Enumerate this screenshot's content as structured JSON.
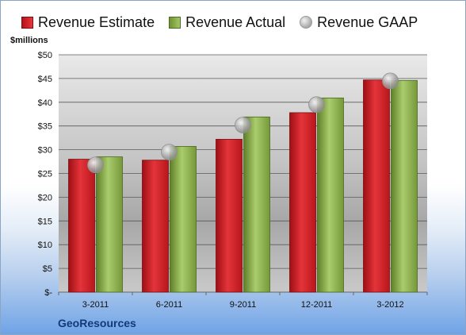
{
  "company": "GeoResources",
  "colors": {
    "estimate": "#d4242a",
    "actual": "#8db04f",
    "gaap": "#b5b5b5"
  },
  "chart_data": {
    "type": "bar",
    "title": "",
    "xlabel": "",
    "ylabel": "$millions",
    "categories": [
      "3-2011",
      "6-2011",
      "9-2011",
      "12-2011",
      "3-2012"
    ],
    "series": [
      {
        "name": "Revenue Estimate",
        "values": [
          28.0,
          27.8,
          32.2,
          37.8,
          44.7
        ]
      },
      {
        "name": "Revenue Actual",
        "values": [
          28.5,
          30.7,
          36.9,
          40.9,
          44.6
        ]
      },
      {
        "name": "Revenue GAAP",
        "values": [
          26.8,
          29.5,
          35.2,
          39.5,
          44.5
        ],
        "marker": "circle"
      }
    ],
    "ylim": [
      0,
      50
    ],
    "yticks": [
      "$-",
      "$5",
      "$10",
      "$15",
      "$20",
      "$25",
      "$30",
      "$35",
      "$40",
      "$45",
      "$50"
    ],
    "grid": true,
    "legend_position": "top"
  }
}
